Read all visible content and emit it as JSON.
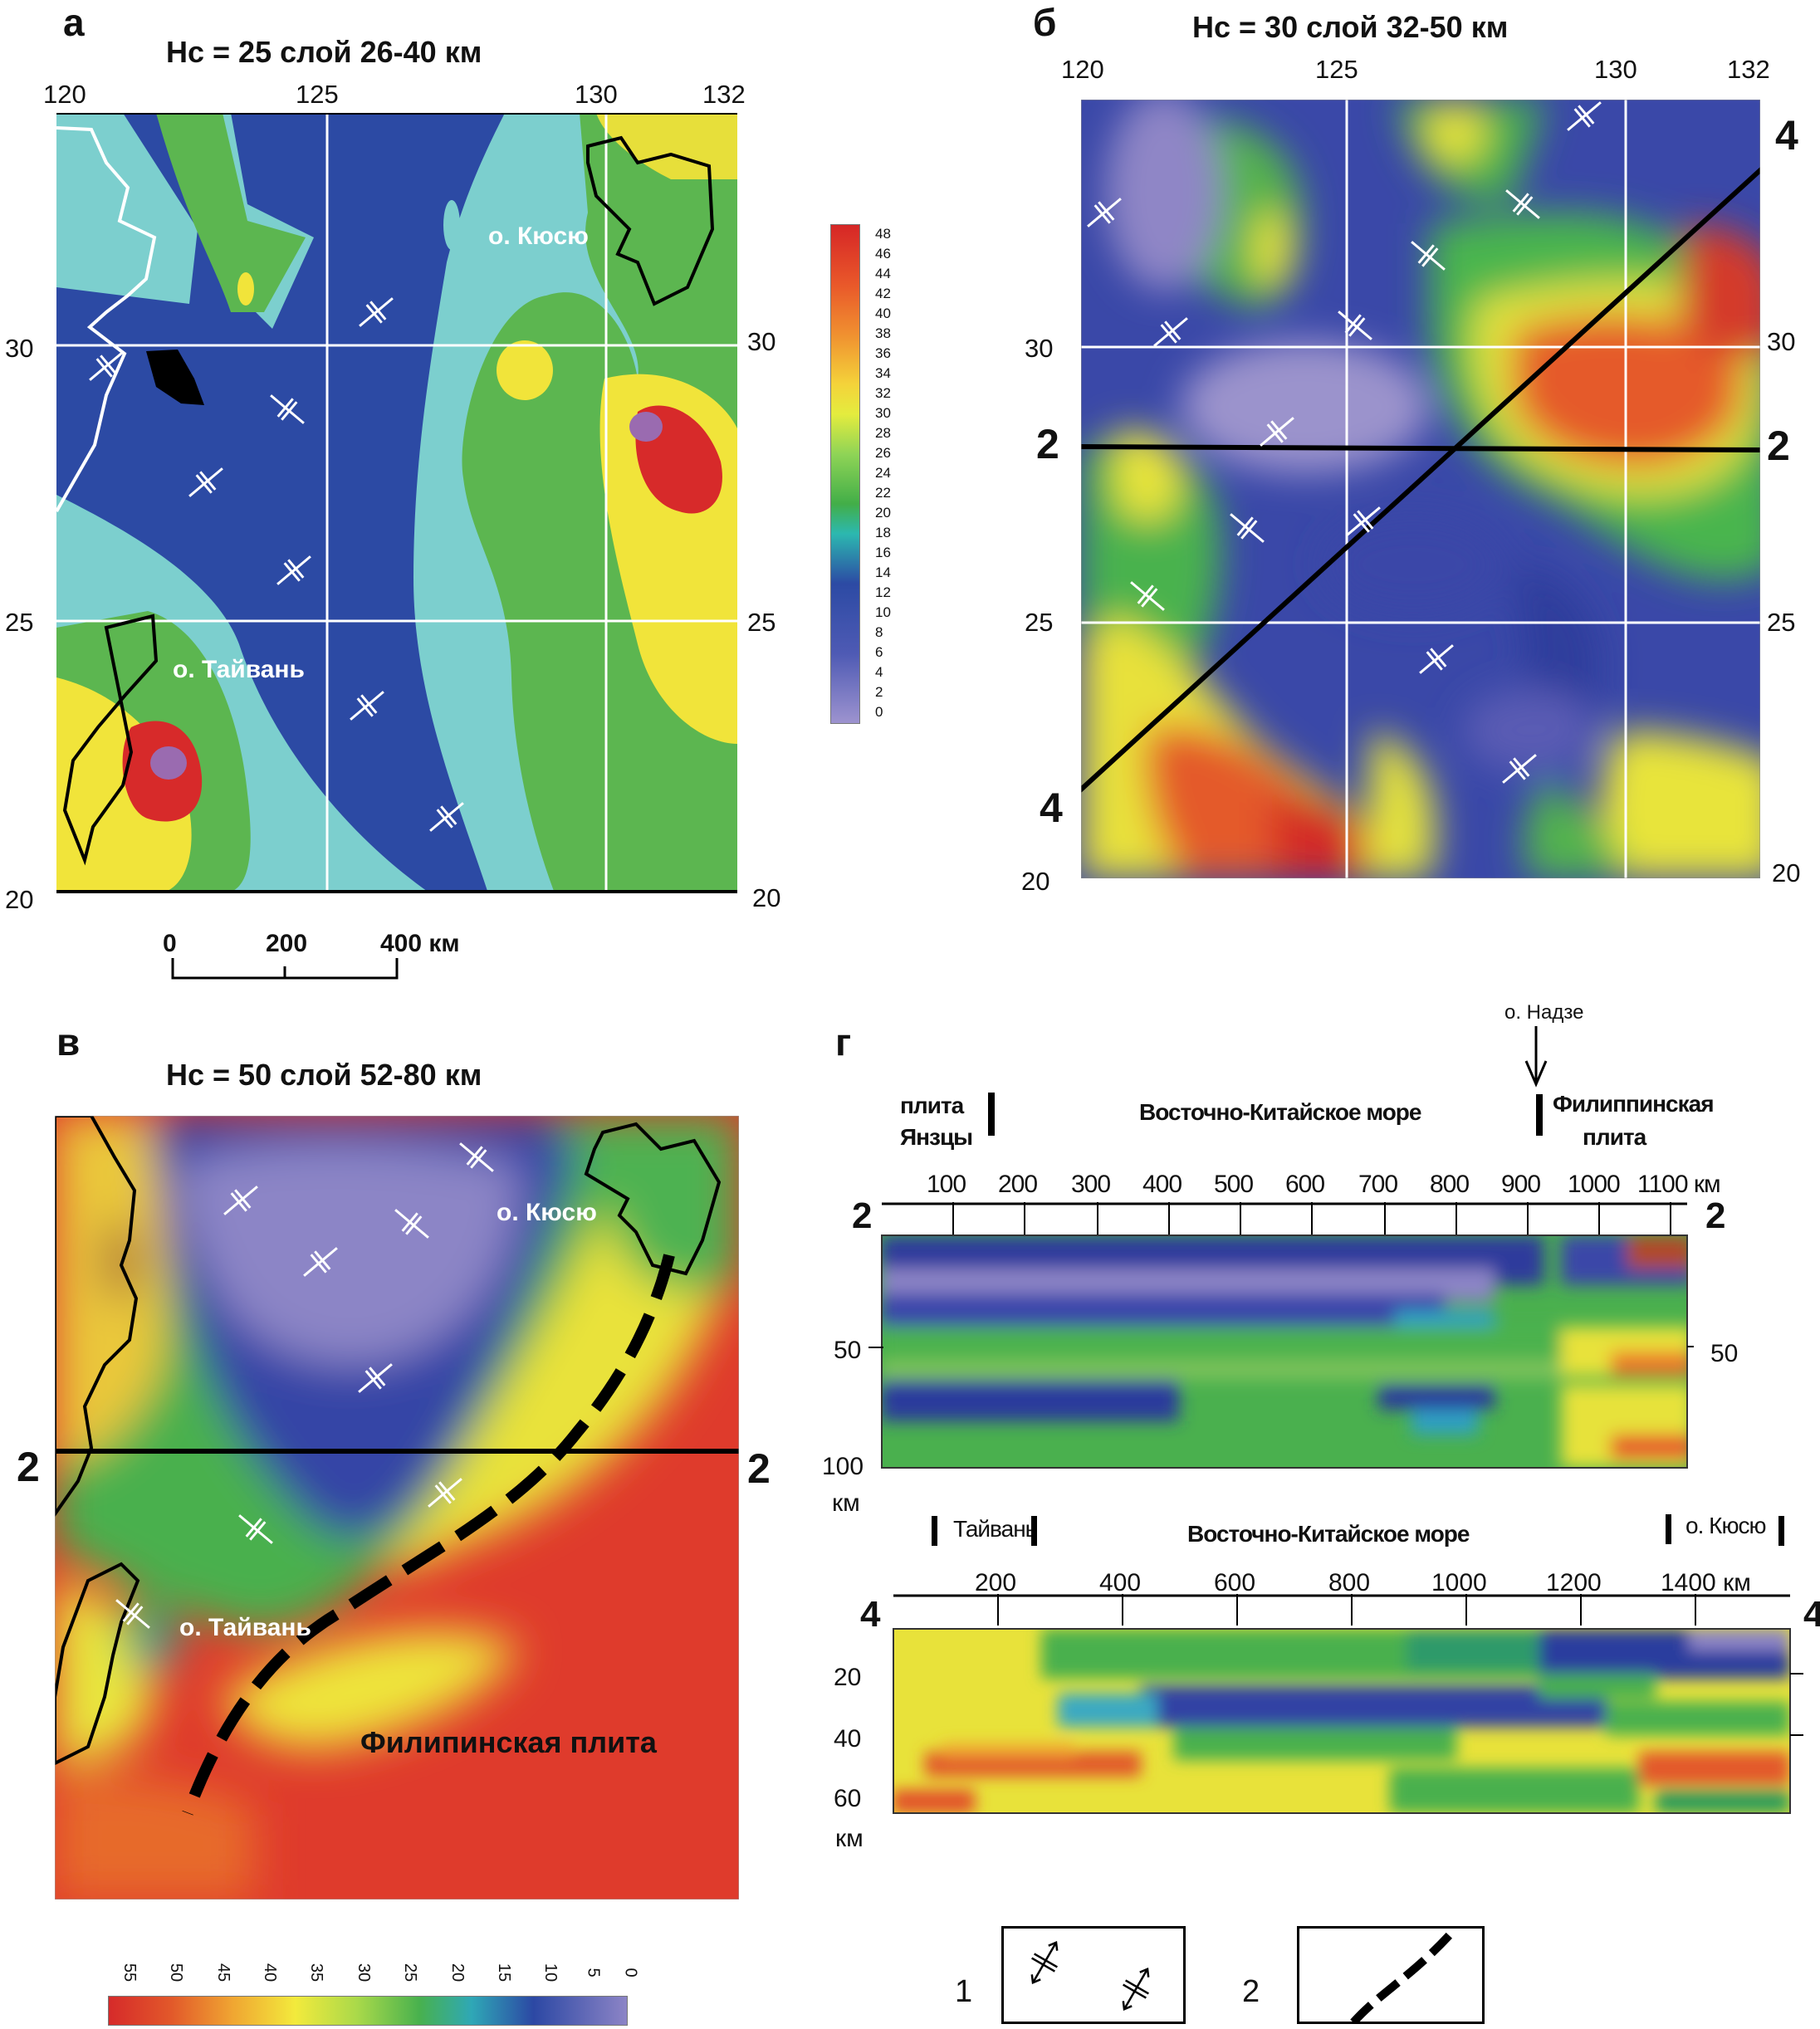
{
  "panel_a": {
    "label": "а",
    "title": "Нс = 25  слой 26-40 км",
    "lon_ticks": [
      "120",
      "125",
      "130",
      "132"
    ],
    "lat_ticks_left": [
      "30",
      "25",
      "20"
    ],
    "lat_ticks_right": [
      "30",
      "25",
      "20"
    ],
    "island_kyushu": "о. Кюсю",
    "island_taiwan": "о. Тайвань",
    "scale": {
      "labels": [
        "0",
        "200",
        "400 км"
      ]
    },
    "colorbar": [
      "48",
      "46",
      "44",
      "42",
      "40",
      "38",
      "36",
      "34",
      "32",
      "30",
      "28",
      "26",
      "24",
      "22",
      "20",
      "18",
      "16",
      "14",
      "12",
      "10",
      "8",
      "6",
      "4",
      "2",
      "0"
    ]
  },
  "panel_b": {
    "label": "б",
    "title": "Нс = 30  слой 32-50 км",
    "lon_ticks": [
      "120",
      "125",
      "130",
      "132"
    ],
    "lat_ticks_left": [
      "30",
      "25",
      "20"
    ],
    "lat_ticks_right": [
      "30",
      "25",
      "20"
    ],
    "profile_2": "2",
    "profile_4": "4"
  },
  "panel_v": {
    "label": "в",
    "title": "Нс = 50  слой 52-80 км",
    "island_kyushu": "о. Кюсю",
    "island_taiwan": "о. Тайвань",
    "plate_label": "Филипинская плита",
    "profile_2": "2",
    "colorbar": [
      "55",
      "50",
      "45",
      "40",
      "35",
      "30",
      "25",
      "20",
      "15",
      "10",
      "5",
      "0"
    ]
  },
  "panel_g": {
    "label": "г",
    "nadze": "о. Надзе",
    "sec2": {
      "name": "2",
      "left_plate": [
        "плита",
        "Янзцы"
      ],
      "sea": "Восточно-Китайское море",
      "right_plate": [
        "Филиппинская",
        "плита"
      ],
      "dist_ticks": [
        "100",
        "200",
        "300",
        "400",
        "500",
        "600",
        "700",
        "800",
        "900",
        "1000",
        "1100 км"
      ],
      "depth_ticks": [
        "50",
        "100"
      ],
      "depth_right": "50",
      "depth_unit": "км"
    },
    "sec4": {
      "name": "4",
      "left": "Тайвань",
      "sea": "Восточно-Китайское море",
      "right": "о. Кюсю",
      "dist_ticks": [
        "200",
        "400",
        "600",
        "800",
        "1000",
        "1200",
        "1400 км"
      ],
      "depth_ticks": [
        "20",
        "40",
        "60"
      ],
      "depth_unit": "км"
    }
  },
  "legend": {
    "item1": "1",
    "item2": "2"
  }
}
